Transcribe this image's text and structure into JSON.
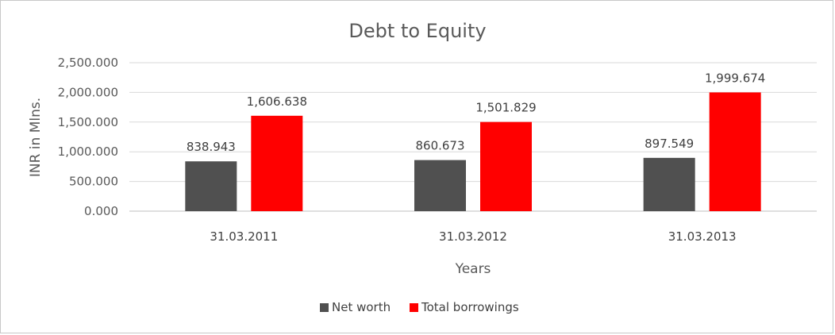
{
  "chart_data": {
    "type": "bar",
    "title": "Debt to Equity",
    "xlabel": "Years",
    "ylabel": "INR in Mlns.",
    "categories": [
      "31.03.2011",
      "31.03.2012",
      "31.03.2013"
    ],
    "ylim": [
      0,
      2500
    ],
    "yticks": [
      "0.000",
      "500.000",
      "1,000.000",
      "1,500.000",
      "2,000.000",
      "2,500.000"
    ],
    "ytick_values": [
      0,
      500,
      1000,
      1500,
      2000,
      2500
    ],
    "grid": true,
    "legend_position": "bottom",
    "series": [
      {
        "name": "Net worth",
        "color": "#505050",
        "values": [
          838.943,
          860.673,
          897.549
        ],
        "labels": [
          "838.943",
          "860.673",
          "897.549"
        ]
      },
      {
        "name": "Total borrowings",
        "color": "#ff0000",
        "values": [
          1606.638,
          1501.829,
          1999.674
        ],
        "labels": [
          "1,606.638",
          "1,501.829",
          "1,999.674"
        ]
      }
    ]
  }
}
